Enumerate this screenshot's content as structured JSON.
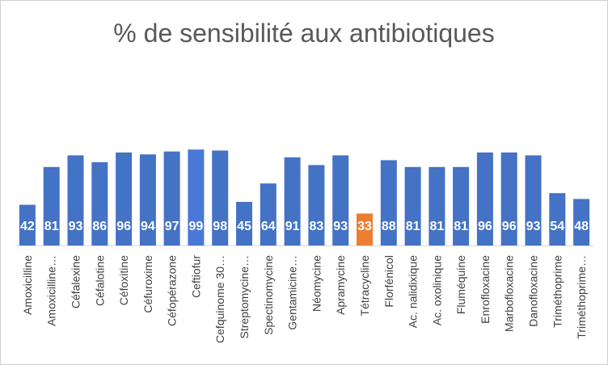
{
  "chart_data": {
    "type": "bar",
    "title": "% de sensibilité aux antibiotiques",
    "xlabel": "",
    "ylabel": "",
    "ylim": [
      0,
      100
    ],
    "grid": false,
    "categories": [
      "Amoxicilline",
      "Amoxicilline…",
      "Céfalexine",
      "Céfalotine",
      "Céfoxitine",
      "Céfuroxime",
      "Céfopérazone",
      "Ceftiofur",
      "Cefquinome 30…",
      "Streptomycine…",
      "Spectinomycine",
      "Gentamicine…",
      "Néomycine",
      "Apramycine",
      "Tétracycline",
      "Florfénicol",
      "Ac. nalidixique",
      "Ac. oxolinique",
      "Fluméquine",
      "Enrofloxacine",
      "Marbofloxacine",
      "Danofloxacine",
      "Triméthoprime",
      "Triméthoprime…"
    ],
    "series": [
      {
        "values": [
          42,
          81,
          93,
          86,
          96,
          94,
          97,
          99,
          98,
          45,
          64,
          91,
          83,
          93,
          33,
          88,
          81,
          81,
          81,
          96,
          96,
          93,
          54,
          48
        ]
      }
    ],
    "colors": {
      "default": "#4472c4",
      "highlight_ceftiofur": "#4a78d6",
      "highlight_tetracycline": "#ed7d31"
    },
    "highlight": {
      "Ceftiofur": "highlight_ceftiofur",
      "Tétracycline": "highlight_tetracycline"
    },
    "data_labels": true
  }
}
